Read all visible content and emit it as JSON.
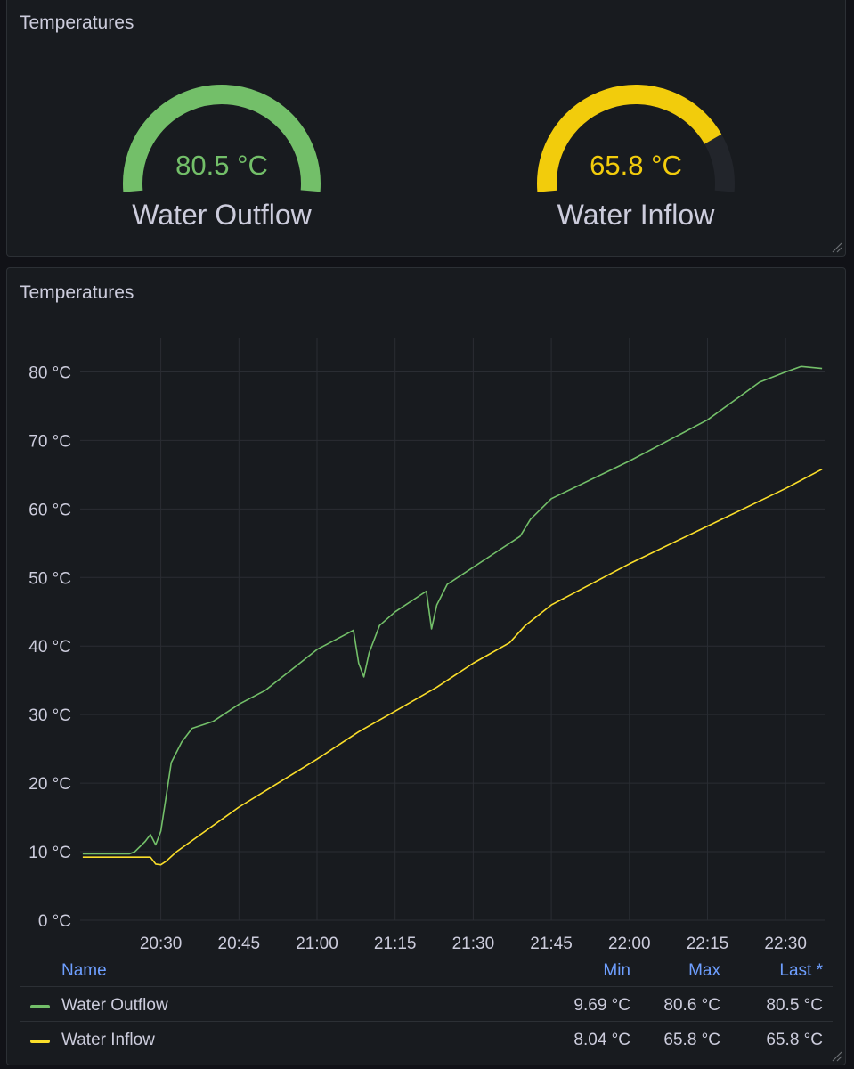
{
  "gauge_panel": {
    "title": "Temperatures",
    "gauges": [
      {
        "label": "Water Outflow",
        "value_text": "80.5 °C",
        "value": 80.5,
        "min": 0,
        "max": 80.6,
        "color": "#73bf69"
      },
      {
        "label": "Water Inflow",
        "value_text": "65.8 °C",
        "value": 65.8,
        "min": 0,
        "max": 80.6,
        "color": "#f2cc0c"
      }
    ]
  },
  "graph_panel": {
    "title": "Temperatures",
    "legend": {
      "headers": {
        "name": "Name",
        "min": "Min",
        "max": "Max",
        "last": "Last *"
      },
      "rows": [
        {
          "name": "Water Outflow",
          "min": "9.69 °C",
          "max": "80.6 °C",
          "last": "80.5 °C",
          "color": "#73bf69"
        },
        {
          "name": "Water Inflow",
          "min": "8.04 °C",
          "max": "65.8 °C",
          "last": "65.8 °C",
          "color": "#fade2a"
        }
      ]
    }
  },
  "chart_data": {
    "type": "line",
    "y_unit": "°C",
    "ylim": [
      0,
      85
    ],
    "y_ticks": [
      "0 °C",
      "10 °C",
      "20 °C",
      "30 °C",
      "40 °C",
      "50 °C",
      "60 °C",
      "70 °C",
      "80 °C"
    ],
    "x_ticks": [
      "20:30",
      "20:45",
      "21:00",
      "21:15",
      "21:30",
      "21:45",
      "22:00",
      "22:15",
      "22:30"
    ],
    "grid": true,
    "legend_position": "bottom",
    "series": [
      {
        "name": "Water Outflow",
        "color": "#73bf69",
        "points": [
          [
            "20:15",
            9.7
          ],
          [
            "20:24",
            9.7
          ],
          [
            "20:25",
            10
          ],
          [
            "20:27",
            11.5
          ],
          [
            "20:28",
            12.5
          ],
          [
            "20:29",
            11
          ],
          [
            "20:30",
            13
          ],
          [
            "20:31",
            18
          ],
          [
            "20:32",
            23
          ],
          [
            "20:34",
            26
          ],
          [
            "20:36",
            28
          ],
          [
            "20:40",
            29
          ],
          [
            "20:45",
            31.5
          ],
          [
            "20:50",
            33.5
          ],
          [
            "20:55",
            36.5
          ],
          [
            "21:00",
            39.5
          ],
          [
            "21:05",
            41.5
          ],
          [
            "21:07",
            42.3
          ],
          [
            "21:08",
            37.5
          ],
          [
            "21:09",
            35.5
          ],
          [
            "21:10",
            39
          ],
          [
            "21:12",
            43
          ],
          [
            "21:15",
            45
          ],
          [
            "21:20",
            47.5
          ],
          [
            "21:21",
            48
          ],
          [
            "21:22",
            42.5
          ],
          [
            "21:23",
            46
          ],
          [
            "21:25",
            49
          ],
          [
            "21:30",
            51.5
          ],
          [
            "21:35",
            54
          ],
          [
            "21:37",
            55
          ],
          [
            "21:39",
            56
          ],
          [
            "21:41",
            58.5
          ],
          [
            "21:45",
            61.5
          ],
          [
            "22:00",
            67
          ],
          [
            "22:15",
            73
          ],
          [
            "22:25",
            78.5
          ],
          [
            "22:30",
            80
          ],
          [
            "22:33",
            80.8
          ],
          [
            "22:37",
            80.5
          ]
        ]
      },
      {
        "name": "Water Inflow",
        "color": "#fade2a",
        "points": [
          [
            "20:15",
            9.2
          ],
          [
            "20:28",
            9.2
          ],
          [
            "20:29",
            8.2
          ],
          [
            "20:30",
            8.1
          ],
          [
            "20:31",
            8.6
          ],
          [
            "20:33",
            10
          ],
          [
            "20:45",
            16.5
          ],
          [
            "21:00",
            23.5
          ],
          [
            "21:08",
            27.5
          ],
          [
            "21:15",
            30.5
          ],
          [
            "21:23",
            34
          ],
          [
            "21:30",
            37.5
          ],
          [
            "21:37",
            40.5
          ],
          [
            "21:40",
            43
          ],
          [
            "21:45",
            46
          ],
          [
            "22:00",
            52
          ],
          [
            "22:15",
            57.5
          ],
          [
            "22:30",
            63
          ],
          [
            "22:37",
            65.8
          ]
        ]
      }
    ]
  }
}
